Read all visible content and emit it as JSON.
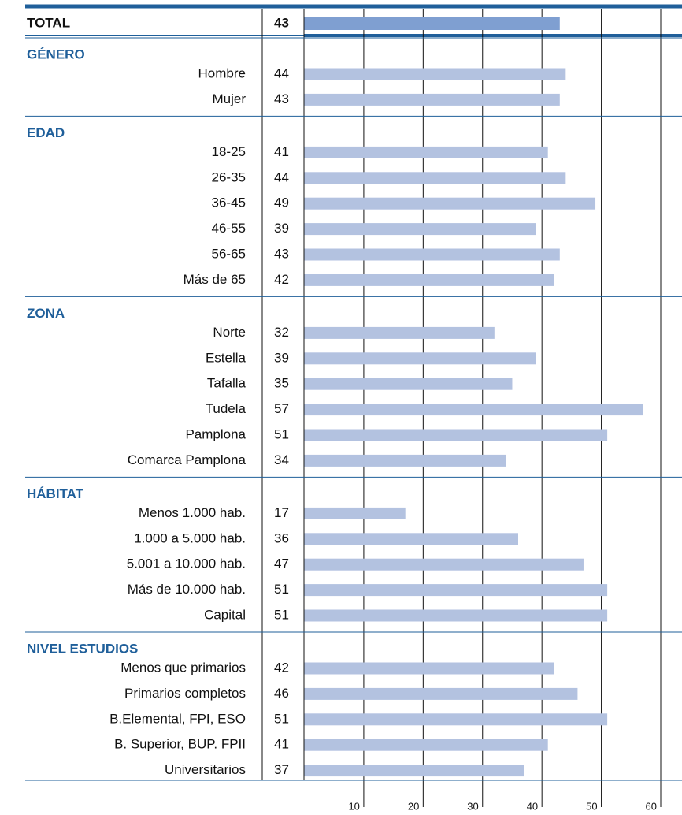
{
  "chart_data": {
    "type": "bar",
    "total": {
      "label": "TOTAL",
      "value": 43,
      "color": "#7f9fd1"
    },
    "color": "#b3c2e0",
    "groups": [
      {
        "name": "GÉNERO",
        "categories": [
          "Hombre",
          "Mujer"
        ],
        "values": [
          44,
          43
        ]
      },
      {
        "name": "EDAD",
        "categories": [
          "18-25",
          "26-35",
          "36-45",
          "46-55",
          "56-65",
          "Más de 65"
        ],
        "values": [
          41,
          44,
          49,
          39,
          43,
          42
        ]
      },
      {
        "name": "ZONA",
        "categories": [
          "Norte",
          "Estella",
          "Tafalla",
          "Tudela",
          "Pamplona",
          "Comarca Pamplona"
        ],
        "values": [
          32,
          39,
          35,
          57,
          51,
          34
        ]
      },
      {
        "name": "HÁBITAT",
        "categories": [
          "Menos 1.000 hab.",
          "1.000 a 5.000 hab.",
          "5.001 a 10.000 hab.",
          "Más de 10.000 hab.",
          "Capital"
        ],
        "values": [
          17,
          36,
          47,
          51,
          51
        ]
      },
      {
        "name": "NIVEL ESTUDIOS",
        "categories": [
          "Menos que primarios",
          "Primarios completos",
          "B.Elemental, FPI, ESO",
          "B. Superior, BUP. FPII",
          "Universitarios"
        ],
        "values": [
          42,
          46,
          51,
          41,
          37
        ]
      }
    ],
    "xlim": [
      0,
      60
    ],
    "xticks": [
      10,
      20,
      30,
      40,
      50,
      60
    ],
    "grid": true
  }
}
